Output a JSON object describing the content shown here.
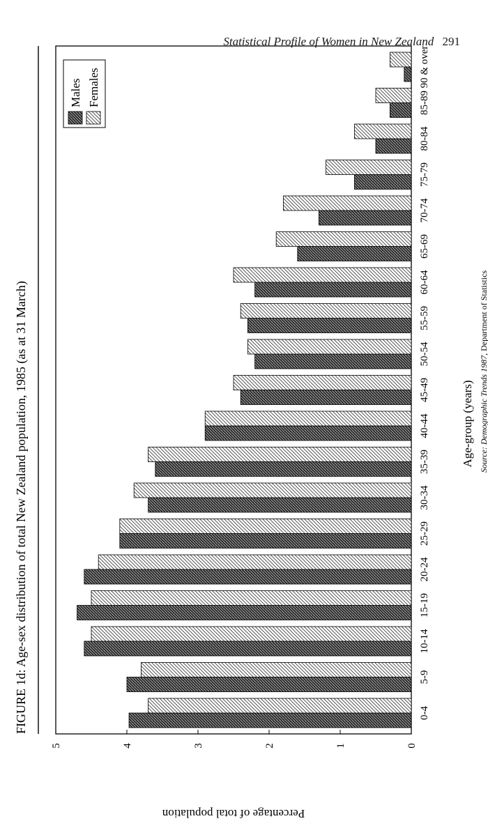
{
  "page": {
    "running_title": "Statistical Profile of Women in New Zealand",
    "page_number": "291",
    "source_prefix": "Source: ",
    "source_publication": "Demographic Trends 1987",
    "source_suffix": ", Department of Statistics"
  },
  "colors": {
    "males": "#2b2b2b",
    "females": "#ffffff",
    "hatch": "#333333",
    "frame": "#000000"
  },
  "chart_data": {
    "type": "bar",
    "orientation": "vertical bars, figure printed rotated 90 degrees on the page",
    "title": "FIGURE 1d: Age-sex distribution of total New Zealand population, 1985 (as at 31 March)",
    "xlabel": "Age-group (years)",
    "ylabel": "Percentage of total population",
    "ylim": [
      0,
      5
    ],
    "yticks": [
      "0",
      "1",
      "2",
      "3",
      "4",
      "5"
    ],
    "grid": false,
    "legend_position": "top-right",
    "categories": [
      "0-4",
      "5-9",
      "10-14",
      "15-19",
      "20-24",
      "25-29",
      "30-34",
      "35-39",
      "40-44",
      "45-49",
      "50-54",
      "55-59",
      "60-64",
      "65-69",
      "70-74",
      "75-79",
      "80-84",
      "85-89",
      "90 & over"
    ],
    "series": [
      {
        "name": "Males",
        "pattern": "dark-crosshatch",
        "values": [
          3.97,
          4.0,
          4.6,
          4.7,
          4.6,
          4.1,
          3.7,
          3.6,
          2.9,
          2.4,
          2.2,
          2.3,
          2.2,
          1.6,
          1.3,
          0.8,
          0.5,
          0.3,
          0.1
        ]
      },
      {
        "name": "Females",
        "pattern": "light-hatch",
        "values": [
          3.7,
          3.8,
          4.5,
          4.5,
          4.4,
          4.1,
          3.9,
          3.7,
          2.9,
          2.5,
          2.3,
          2.4,
          2.5,
          1.9,
          1.8,
          1.2,
          0.8,
          0.5,
          0.3
        ]
      }
    ]
  }
}
